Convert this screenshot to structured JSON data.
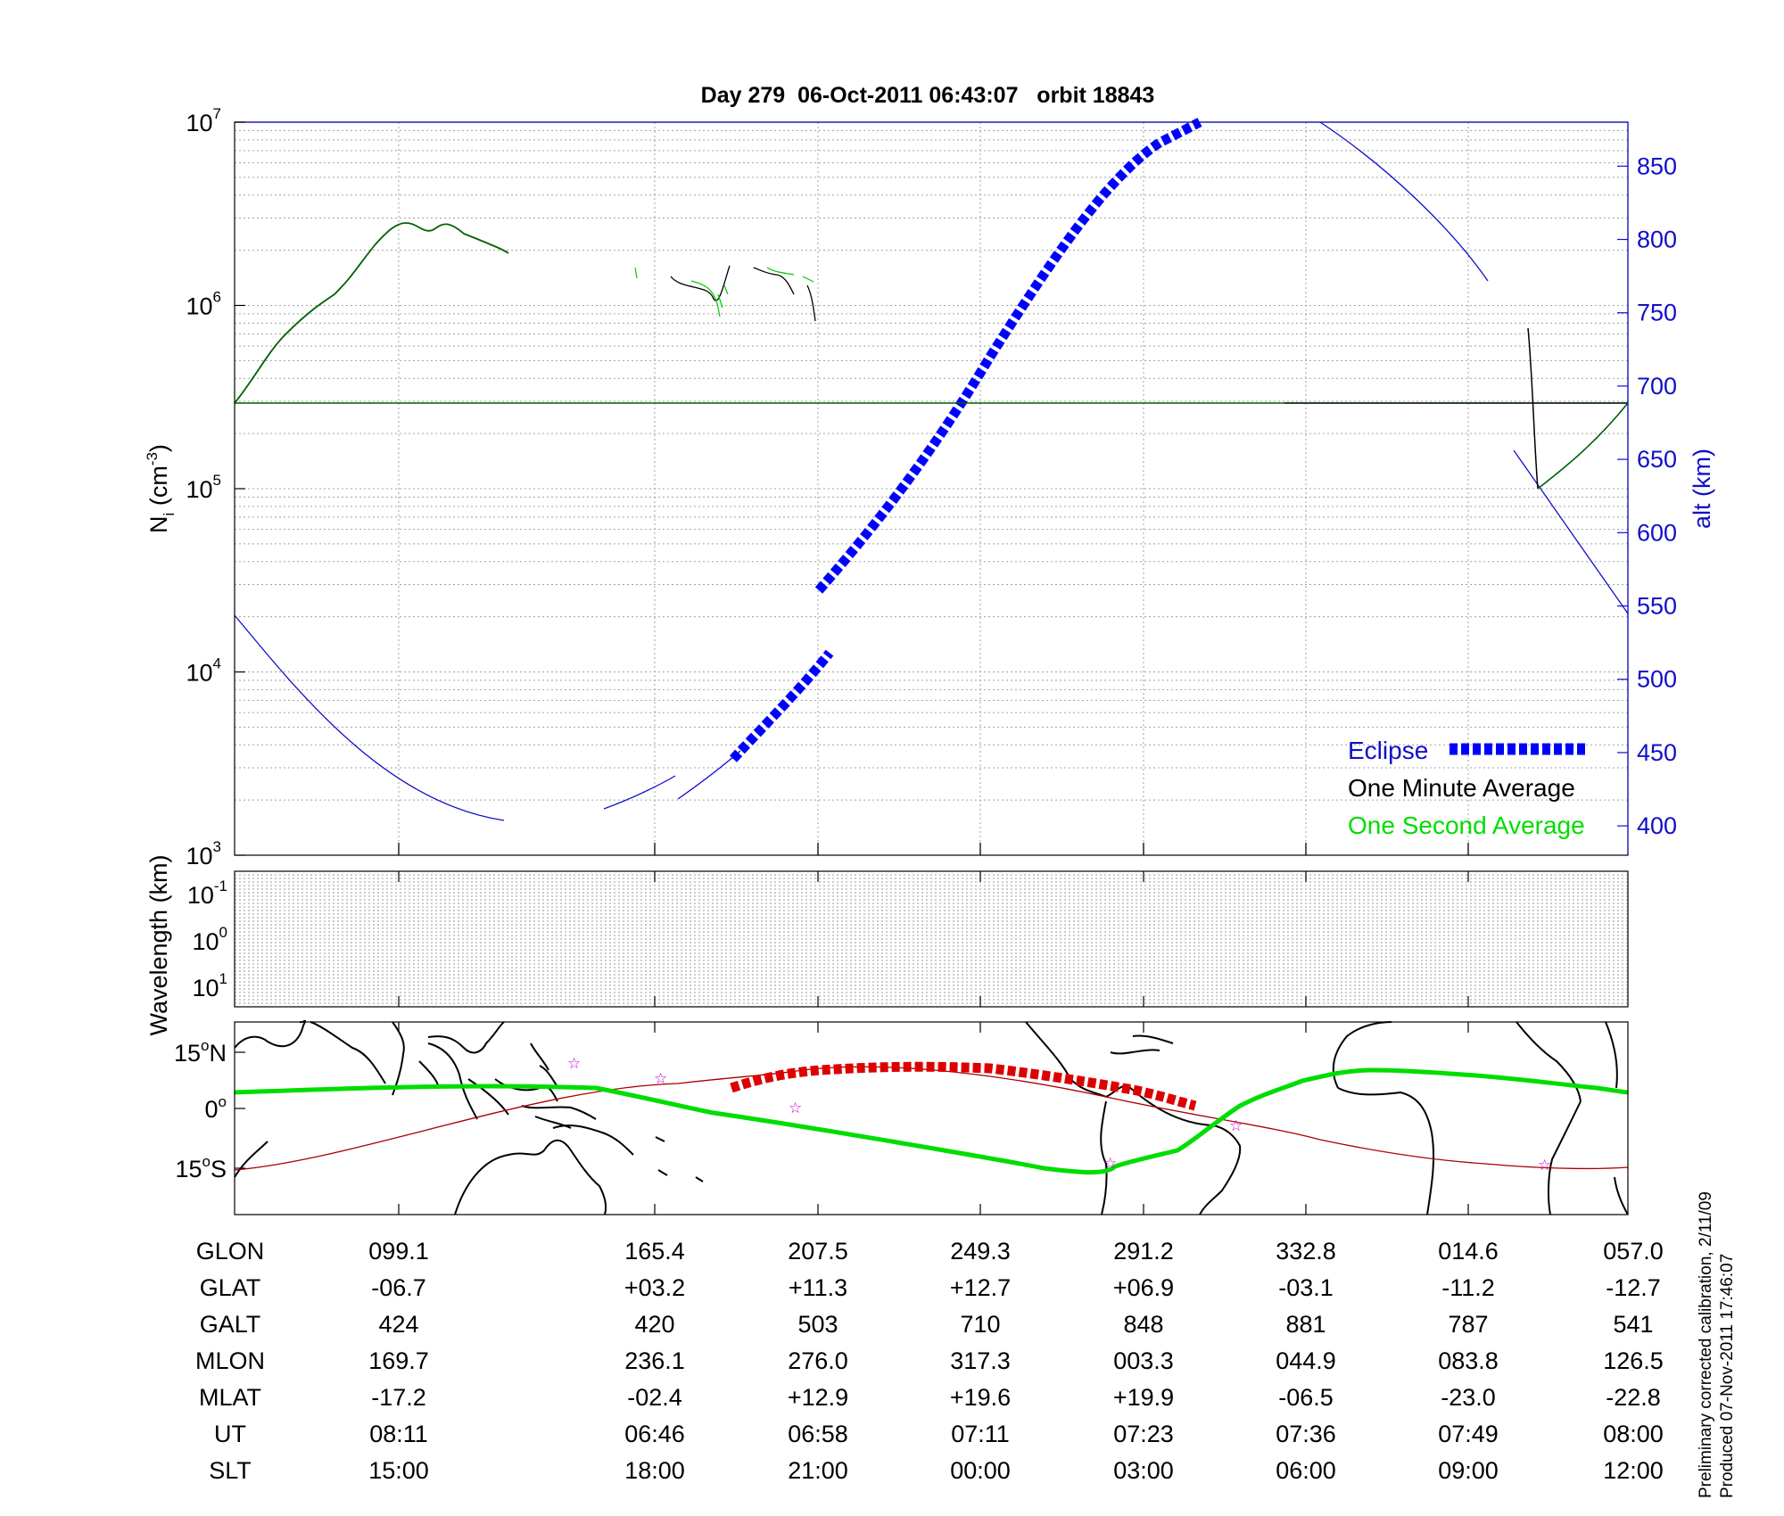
{
  "title": "Day 279  06-Oct-2011 06:43:07   orbit 18843",
  "chart_data": [
    {
      "type": "line",
      "panel": "density",
      "ylabel": "N_i (cm^-3)",
      "y2label": "alt (km)",
      "yscale": "log",
      "ylim": [
        1000,
        10000000
      ],
      "y_ticks": [
        {
          "base": "10",
          "exp": "3",
          "value": 1000
        },
        {
          "base": "10",
          "exp": "4",
          "value": 10000
        },
        {
          "base": "10",
          "exp": "5",
          "value": 100000
        },
        {
          "base": "10",
          "exp": "6",
          "value": 1000000
        },
        {
          "base": "10",
          "exp": "7",
          "value": 10000000
        }
      ],
      "y2lim": [
        380,
        880
      ],
      "y2_ticks": [
        "850",
        "800",
        "750",
        "700",
        "650",
        "600",
        "550",
        "500",
        "450",
        "400"
      ],
      "x": [
        "08:11",
        "06:46",
        "06:58",
        "07:11",
        "07:23",
        "07:36",
        "07:49",
        "08:00"
      ],
      "grid": true,
      "legend": {
        "placement": "bottom-right",
        "entries": [
          {
            "label": "Eclipse",
            "color": "#0000ff"
          },
          {
            "label": "One Minute Average",
            "color": "#000000"
          },
          {
            "label": "One Second Average",
            "color": "#00dd00"
          }
        ]
      },
      "colors": {
        "altitude": "#1010c8",
        "eclipse": "#0000ff",
        "minute": "#000000",
        "second": "#00cc00",
        "density_trace": "#006000"
      }
    },
    {
      "type": "line",
      "panel": "wavelength",
      "ylabel": "Wavelength (km)",
      "y_ticks": [
        {
          "base": "10",
          "exp": "-1"
        },
        {
          "base": "10",
          "exp": "0"
        },
        {
          "base": "10",
          "exp": "1"
        }
      ],
      "grid": true
    },
    {
      "type": "line",
      "panel": "ground-track map",
      "y_ticks": [
        {
          "label": "15",
          "deg": "o",
          "hemi": "N"
        },
        {
          "label": "0",
          "deg": "o",
          "hemi": ""
        },
        {
          "label": "15",
          "deg": "o",
          "hemi": "S"
        }
      ],
      "colors": {
        "track": "#00dd00",
        "eclipse": "#dd0000",
        "magnetic_equator": "#aa0000",
        "stars": "#cc00cc",
        "coast": "#000000"
      }
    }
  ],
  "ephemeris": {
    "rows": [
      {
        "label": "GLON",
        "values": [
          "099.1",
          "165.4",
          "207.5",
          "249.3",
          "291.2",
          "332.8",
          "014.6",
          "057.0"
        ]
      },
      {
        "label": "GLAT",
        "values": [
          "-06.7",
          "+03.2",
          "+11.3",
          "+12.7",
          "+06.9",
          "-03.1",
          "-11.2",
          "-12.7"
        ]
      },
      {
        "label": "GALT",
        "values": [
          "424",
          "420",
          "503",
          "710",
          "848",
          "881",
          "787",
          "541"
        ]
      },
      {
        "label": "MLON",
        "values": [
          "169.7",
          "236.1",
          "276.0",
          "317.3",
          "003.3",
          "044.9",
          "083.8",
          "126.5"
        ]
      },
      {
        "label": "MLAT",
        "values": [
          "-17.2",
          "-02.4",
          "+12.9",
          "+19.6",
          "+19.9",
          "-06.5",
          "-23.0",
          "-22.8"
        ]
      },
      {
        "label": "UT",
        "values": [
          "08:11",
          "06:46",
          "06:58",
          "07:11",
          "07:23",
          "07:36",
          "07:49",
          "08:00"
        ]
      },
      {
        "label": "SLT",
        "values": [
          "15:00",
          "18:00",
          "21:00",
          "00:00",
          "03:00",
          "06:00",
          "09:00",
          "12:00"
        ]
      }
    ]
  },
  "notes": {
    "calibration": "Preliminary corrected calibration, 2/11/09",
    "produced": "Produced 07-Nov-2011 17:46:07"
  }
}
